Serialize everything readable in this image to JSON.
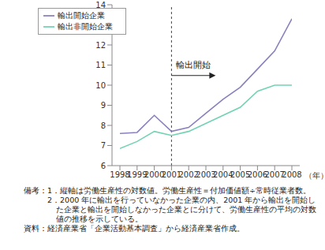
{
  "chart_data": {
    "type": "line",
    "x": [
      1998,
      1999,
      2000,
      2001,
      2002,
      2003,
      2004,
      2005,
      2006,
      2007,
      2008
    ],
    "x_label": "（年）",
    "series": [
      {
        "name": "輸出開始企業",
        "color": "#8a80bd",
        "values": [
          7.6,
          7.65,
          8.5,
          7.7,
          7.9,
          8.6,
          9.3,
          9.9,
          10.8,
          11.7,
          13.3
        ]
      },
      {
        "name": "輸出非開始企業",
        "color": "#72d2b4",
        "values": [
          6.85,
          7.2,
          7.7,
          7.5,
          7.7,
          8.1,
          8.5,
          8.9,
          9.7,
          10.0,
          10.0
        ]
      }
    ],
    "xlim": [
      1998,
      2008
    ],
    "xticks": [
      1998,
      1999,
      2000,
      2001,
      2002,
      2003,
      2004,
      2005,
      2006,
      2007,
      2008
    ],
    "ylim": [
      6,
      14
    ],
    "yticks": [
      6,
      7,
      8,
      9,
      10,
      11,
      12,
      13,
      14
    ],
    "grid": false,
    "legend": "upper left",
    "annotation": {
      "text": "輸出開始",
      "x": 2001
    },
    "notes_label": "備考：",
    "notes": [
      "1．縦軸は労働生産性の対数値。労働生産性＝付加価値額÷常時従業者数。",
      "2．2000 年に輸出を行っていなかった企業の内、2001 年から輸出を開始した企業と輸出を開始しなかった企業とに分けて、労働生産性の平均の対数値の推移を示している。"
    ],
    "source": "資料：経済産業省「企業活動基本調査」から経済産業省作成。"
  }
}
